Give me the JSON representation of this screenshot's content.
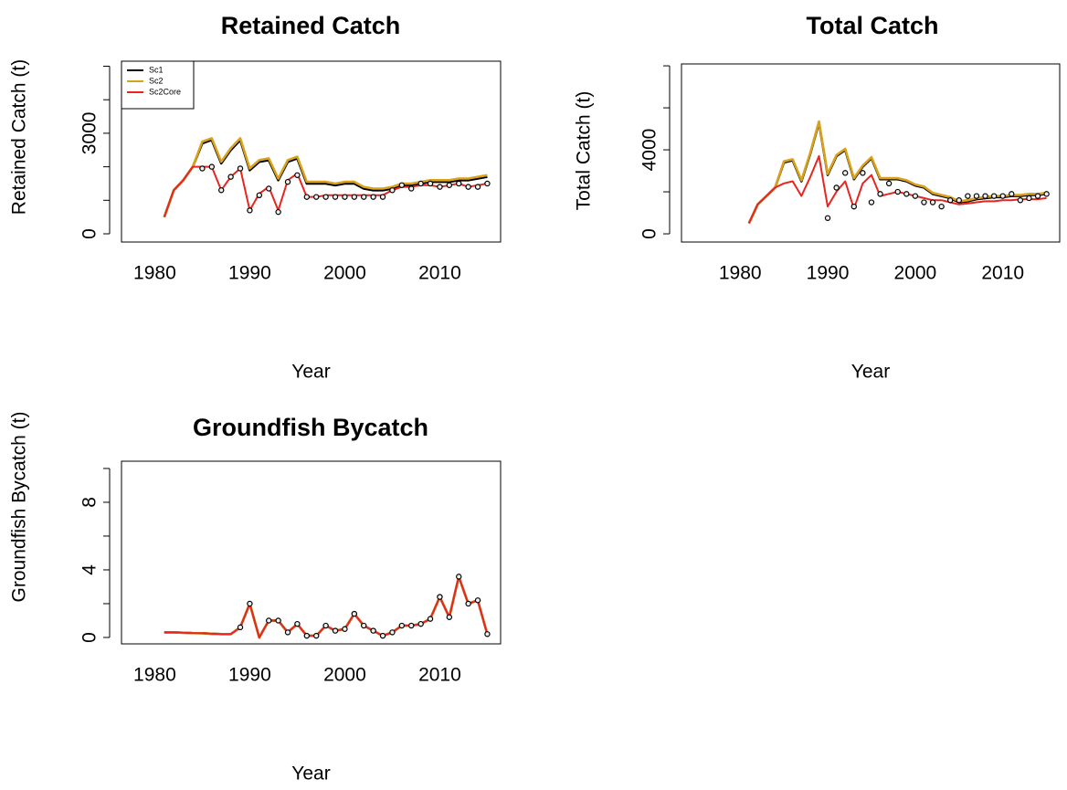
{
  "chart_data": [
    {
      "type": "line",
      "title": "Retained Catch",
      "xlabel": "Year",
      "ylabel": "Retained Catch (t)",
      "legend": "topleft",
      "x": [
        1981,
        1982,
        1983,
        1984,
        1985,
        1986,
        1987,
        1988,
        1989,
        1990,
        1991,
        1992,
        1993,
        1994,
        1995,
        1996,
        1997,
        1998,
        1999,
        2000,
        2001,
        2002,
        2003,
        2004,
        2005,
        2006,
        2007,
        2008,
        2009,
        2010,
        2011,
        2012,
        2013,
        2014,
        2015
      ],
      "series": [
        {
          "name": "Sc1",
          "color": "#000000",
          "values": [
            500,
            1300,
            1600,
            2000,
            2700,
            2800,
            2100,
            2500,
            2800,
            1900,
            2150,
            2200,
            1600,
            2150,
            2250,
            1500,
            1500,
            1500,
            1450,
            1500,
            1500,
            1350,
            1300,
            1300,
            1350,
            1450,
            1450,
            1500,
            1550,
            1550,
            1550,
            1600,
            1600,
            1650,
            1700
          ]
        },
        {
          "name": "Sc2",
          "color": "#d9a21b",
          "values": [
            500,
            1300,
            1600,
            2000,
            2750,
            2850,
            2150,
            2550,
            2850,
            1950,
            2200,
            2250,
            1650,
            2200,
            2300,
            1550,
            1550,
            1550,
            1500,
            1550,
            1550,
            1400,
            1350,
            1350,
            1400,
            1500,
            1500,
            1550,
            1600,
            1600,
            1600,
            1650,
            1650,
            1700,
            1750
          ]
        },
        {
          "name": "Sc2Core",
          "color": "#e8251f",
          "values": [
            500,
            1300,
            1600,
            2000,
            2000,
            2000,
            1300,
            1700,
            1950,
            700,
            1200,
            1400,
            700,
            1600,
            1800,
            1100,
            1100,
            1150,
            1150,
            1150,
            1150,
            1150,
            1150,
            1150,
            1300,
            1400,
            1400,
            1450,
            1450,
            1400,
            1450,
            1500,
            1400,
            1450,
            1500
          ]
        }
      ],
      "points": {
        "x": [
          1985,
          1986,
          1987,
          1988,
          1989,
          1990,
          1991,
          1992,
          1993,
          1994,
          1995,
          1996,
          1997,
          1998,
          1999,
          2000,
          2001,
          2002,
          2003,
          2004,
          2005,
          2006,
          2007,
          2008,
          2009,
          2010,
          2011,
          2012,
          2013,
          2014,
          2015
        ],
        "values": [
          1950,
          2000,
          1300,
          1700,
          1950,
          700,
          1150,
          1350,
          650,
          1550,
          1750,
          1100,
          1100,
          1100,
          1100,
          1100,
          1100,
          1100,
          1100,
          1100,
          1300,
          1450,
          1350,
          1500,
          1500,
          1400,
          1450,
          1500,
          1400,
          1400,
          1500
        ]
      },
      "xlim": [
        1976.5,
        2016.4
      ],
      "xticks": [
        1980,
        1990,
        2000,
        2010
      ],
      "ylim": [
        -245,
        5150
      ],
      "yticks": [
        0,
        {
          "value": 1000,
          "label": null
        },
        {
          "value": 2000,
          "label": null
        },
        3000,
        {
          "value": 4000,
          "label": null
        },
        {
          "value": 5000,
          "label": null
        }
      ]
    },
    {
      "type": "line",
      "title": "Total Catch",
      "xlabel": "Year",
      "ylabel": "Total Catch (t)",
      "x": [
        1981,
        1982,
        1983,
        1984,
        1985,
        1986,
        1987,
        1988,
        1989,
        1990,
        1991,
        1992,
        1993,
        1994,
        1995,
        1996,
        1997,
        1998,
        1999,
        2000,
        2001,
        2002,
        2003,
        2004,
        2005,
        2006,
        2007,
        2008,
        2009,
        2010,
        2011,
        2012,
        2013,
        2014,
        2015
      ],
      "series": [
        {
          "name": "Sc1",
          "color": "#000000",
          "values": [
            500,
            1400,
            1800,
            2200,
            3400,
            3500,
            2500,
            3800,
            5300,
            2800,
            3700,
            4000,
            2600,
            3200,
            3600,
            2600,
            2600,
            2600,
            2500,
            2300,
            2200,
            1900,
            1800,
            1700,
            1500,
            1550,
            1650,
            1700,
            1750,
            1750,
            1800,
            1800,
            1850,
            1850,
            1900
          ]
        },
        {
          "name": "Sc2",
          "color": "#d9a21b",
          "values": [
            500,
            1400,
            1800,
            2200,
            3450,
            3550,
            2550,
            3850,
            5350,
            2850,
            3750,
            4050,
            2650,
            3250,
            3650,
            2650,
            2650,
            2650,
            2550,
            2350,
            2250,
            1950,
            1850,
            1750,
            1550,
            1600,
            1700,
            1750,
            1800,
            1800,
            1850,
            1850,
            1900,
            1900,
            1950
          ]
        },
        {
          "name": "Sc2Core",
          "color": "#e8251f",
          "values": [
            500,
            1400,
            1800,
            2200,
            2400,
            2500,
            1800,
            2700,
            3700,
            1300,
            2000,
            2500,
            1200,
            2400,
            2800,
            1800,
            1900,
            2000,
            1900,
            1800,
            1700,
            1600,
            1600,
            1500,
            1400,
            1450,
            1500,
            1550,
            1550,
            1600,
            1600,
            1650,
            1650,
            1650,
            1700
          ]
        }
      ],
      "points": {
        "x": [
          1990,
          1991,
          1992,
          1993,
          1994,
          1995,
          1996,
          1997,
          1998,
          1999,
          2000,
          2001,
          2002,
          2003,
          2004,
          2005,
          2006,
          2007,
          2008,
          2009,
          2010,
          2011,
          2012,
          2013,
          2014,
          2015
        ],
        "values": [
          750,
          2200,
          2900,
          1300,
          2900,
          1500,
          1900,
          2400,
          2000,
          1900,
          1800,
          1500,
          1500,
          1300,
          1600,
          1600,
          1800,
          1800,
          1800,
          1800,
          1800,
          1900,
          1600,
          1700,
          1800,
          1900
        ]
      },
      "xlim": [
        1973.3,
        2016.5
      ],
      "xticks": [
        1980,
        1990,
        2000,
        2010
      ],
      "ylim": [
        -390,
        8090
      ],
      "yticks": [
        0,
        {
          "value": 2000,
          "label": null
        },
        4000,
        {
          "value": 6000,
          "label": null
        },
        {
          "value": 8000,
          "label": null
        }
      ]
    },
    {
      "type": "line",
      "title": "Groundfish Bycatch",
      "xlabel": "Year",
      "ylabel": "Groundfish Bycatch (t)",
      "x": [
        1981,
        1982,
        1983,
        1984,
        1985,
        1986,
        1987,
        1988,
        1989,
        1990,
        1991,
        1992,
        1993,
        1994,
        1995,
        1996,
        1997,
        1998,
        1999,
        2000,
        2001,
        2002,
        2003,
        2004,
        2005,
        2006,
        2007,
        2008,
        2009,
        2010,
        2011,
        2012,
        2013,
        2014,
        2015
      ],
      "series": [
        {
          "name": "Sc1",
          "color": "#000000",
          "values": [
            0.3,
            0.3,
            0.28,
            0.26,
            0.25,
            0.22,
            0.2,
            0.2,
            0.6,
            2.0,
            0,
            1.0,
            1.0,
            0.3,
            0.8,
            0.1,
            0.1,
            0.7,
            0.4,
            0.5,
            1.4,
            0.7,
            0.4,
            0.1,
            0.3,
            0.7,
            0.7,
            0.8,
            1.1,
            2.4,
            1.2,
            3.6,
            2.0,
            2.2,
            0.2
          ]
        },
        {
          "name": "Sc2",
          "color": "#d9a21b",
          "values": [
            0.3,
            0.3,
            0.28,
            0.26,
            0.25,
            0.22,
            0.2,
            0.2,
            0.6,
            2.0,
            0,
            1.0,
            1.0,
            0.3,
            0.8,
            0.1,
            0.1,
            0.7,
            0.4,
            0.5,
            1.4,
            0.7,
            0.4,
            0.1,
            0.3,
            0.7,
            0.7,
            0.8,
            1.1,
            2.4,
            1.2,
            3.6,
            2.0,
            2.2,
            0.2
          ]
        },
        {
          "name": "Sc2Core",
          "color": "#e8251f",
          "values": [
            0.3,
            0.3,
            0.28,
            0.26,
            0.25,
            0.22,
            0.2,
            0.2,
            0.6,
            2.0,
            0,
            1.0,
            1.0,
            0.3,
            0.8,
            0.1,
            0.1,
            0.7,
            0.4,
            0.5,
            1.4,
            0.7,
            0.4,
            0.1,
            0.3,
            0.7,
            0.7,
            0.8,
            1.1,
            2.4,
            1.2,
            3.6,
            2.0,
            2.2,
            0.2
          ]
        }
      ],
      "points": {
        "x": [
          1989,
          1990,
          1991,
          1992,
          1993,
          1994,
          1995,
          1996,
          1997,
          1998,
          1999,
          2000,
          2001,
          2002,
          2003,
          2004,
          2005,
          2006,
          2007,
          2008,
          2009,
          2010,
          2011,
          2012,
          2013,
          2014,
          2015
        ],
        "values": [
          0.6,
          2.0,
          null,
          1.0,
          1.0,
          0.3,
          0.8,
          0.1,
          0.1,
          0.7,
          0.4,
          0.5,
          1.4,
          0.7,
          0.4,
          0.1,
          0.3,
          0.7,
          0.7,
          0.8,
          1.1,
          2.4,
          1.2,
          3.6,
          2.0,
          2.2,
          0.2
        ]
      },
      "xlim": [
        1976.5,
        2016.4
      ],
      "xticks": [
        1980,
        1990,
        2000,
        2010
      ],
      "ylim": [
        -0.38,
        10.43
      ],
      "yticks": [
        0,
        {
          "value": 2,
          "label": null
        },
        4,
        {
          "value": 6,
          "label": null
        },
        8,
        {
          "value": 10,
          "label": null
        }
      ]
    }
  ]
}
